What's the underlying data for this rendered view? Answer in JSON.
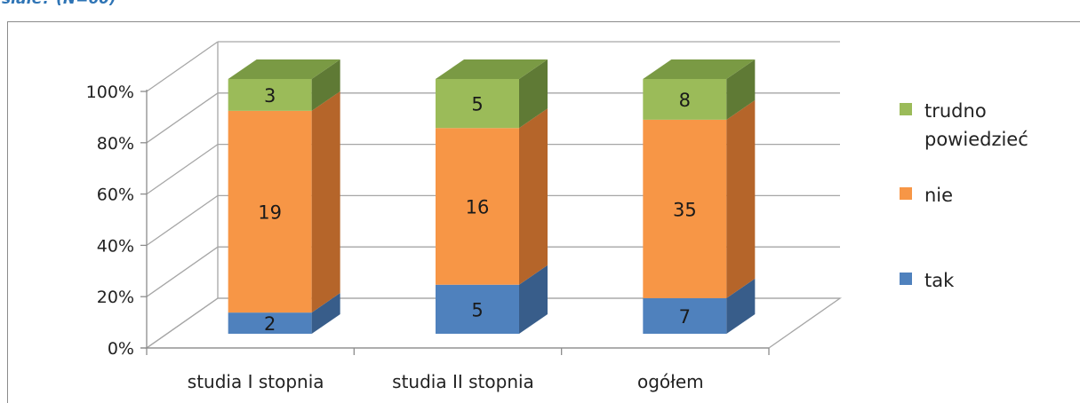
{
  "heading_fragment": "siałe?  (N=60)",
  "chart_data": {
    "type": "bar",
    "stacked": true,
    "normalized_percent": true,
    "categories": [
      "studia I stopnia",
      "studia II stopnia",
      "ogółem"
    ],
    "series": [
      {
        "name": "tak",
        "values": [
          2,
          5,
          7
        ],
        "color": "#4f81bd",
        "top_color": "#6a9bd8",
        "side_color": "#385d8a"
      },
      {
        "name": "nie",
        "values": [
          19,
          16,
          35
        ],
        "color": "#f79646",
        "top_color": "#f9ad6b",
        "side_color": "#b5652a"
      },
      {
        "name": "trudno powiedzieć",
        "values": [
          3,
          5,
          8
        ],
        "color": "#9bbb59",
        "top_color": "#7a9a44",
        "side_color": "#5f7a35"
      }
    ],
    "y_ticks": [
      "0%",
      "20%",
      "40%",
      "60%",
      "80%",
      "100%"
    ],
    "ylim": [
      0,
      100
    ],
    "grid": true,
    "legend_position": "right",
    "legend_labels": [
      [
        "trudno",
        "powiedzieć"
      ],
      [
        "nie"
      ],
      [
        "tak"
      ]
    ]
  }
}
